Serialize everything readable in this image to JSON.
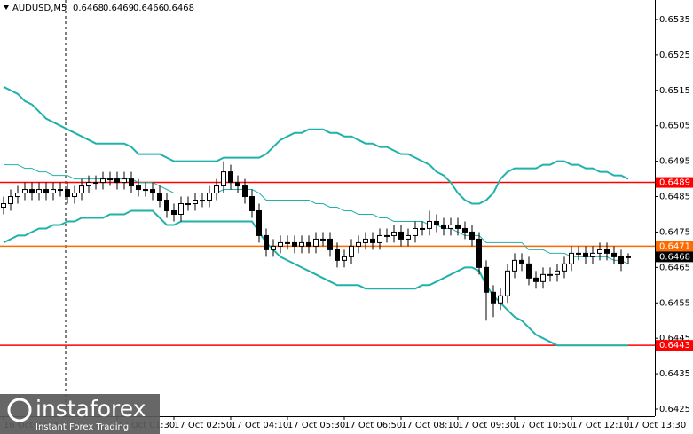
{
  "chart_data": {
    "type": "candlestick",
    "symbol": "AUDUSD,M5",
    "categories": [
      "16 Oct 2024",
      null,
      null,
      null,
      null,
      null,
      null,
      null,
      null,
      null,
      null,
      null,
      null,
      null,
      null,
      null,
      "17 Oct 01:30",
      null,
      null,
      null,
      null,
      null,
      null,
      null,
      "17 Oct 02:50",
      null,
      null,
      null,
      null,
      null,
      null,
      null,
      "17 Oct 04:10",
      null,
      null,
      null,
      null,
      null,
      null,
      null,
      "17 Oct 05:30",
      null,
      null,
      null,
      null,
      null,
      null,
      null,
      "17 Oct 06:50",
      null,
      null,
      null,
      null,
      null,
      null,
      null,
      "17 Oct 08:10",
      null,
      null,
      null,
      null,
      null,
      null,
      null,
      "17 Oct 09:30",
      null,
      null,
      null,
      null,
      null,
      null,
      null,
      "17 Oct 10:50",
      null,
      null,
      null,
      null,
      null,
      null,
      null,
      "17 Oct 12:10",
      null,
      null,
      null,
      null,
      null,
      null,
      null,
      "17 Oct 13:30"
    ],
    "open": [
      0.6482,
      0.6483,
      0.6485,
      0.6486,
      0.6487,
      0.6486,
      0.6487,
      0.6486,
      0.6487,
      0.6487,
      0.6485,
      0.6486,
      0.6488,
      0.6489,
      0.6489,
      0.649,
      0.649,
      0.6489,
      0.649,
      0.6488,
      0.6487,
      0.6487,
      0.6486,
      0.6484,
      0.6481,
      0.648,
      0.6483,
      0.6483,
      0.6484,
      0.6484,
      0.6486,
      0.6488,
      0.6492,
      0.6489,
      0.6488,
      0.6485,
      0.6481,
      0.6474,
      0.647,
      0.6471,
      0.6472,
      0.6472,
      0.6471,
      0.6472,
      0.6471,
      0.6473,
      0.6473,
      0.647,
      0.6467,
      0.6468,
      0.6471,
      0.6472,
      0.6473,
      0.6472,
      0.6474,
      0.6474,
      0.6475,
      0.6473,
      0.6474,
      0.6476,
      0.6476,
      0.6478,
      0.6477,
      0.6476,
      0.6477,
      0.6476,
      0.6475,
      0.6473,
      0.6465,
      0.6458,
      0.6455,
      0.6457,
      0.6464,
      0.6467,
      0.6466,
      0.6462,
      0.6461,
      0.6463,
      0.6463,
      0.6464,
      0.6466,
      0.6469,
      0.6469,
      0.6468,
      0.6469,
      0.647,
      0.6469,
      0.6468,
      0.6468
    ],
    "high": [
      0.6485,
      0.6487,
      0.6488,
      0.6489,
      0.6489,
      0.6489,
      0.6489,
      0.6489,
      0.6489,
      0.6489,
      0.6488,
      0.649,
      0.6491,
      0.6491,
      0.6492,
      0.6492,
      0.6492,
      0.6492,
      0.6492,
      0.649,
      0.6489,
      0.6489,
      0.6488,
      0.6486,
      0.6483,
      0.6485,
      0.6485,
      0.6486,
      0.6486,
      0.6488,
      0.649,
      0.6495,
      0.6494,
      0.6491,
      0.649,
      0.6487,
      0.6483,
      0.6476,
      0.6473,
      0.6474,
      0.6474,
      0.6474,
      0.6474,
      0.6474,
      0.6475,
      0.6475,
      0.6475,
      0.6472,
      0.647,
      0.6473,
      0.6474,
      0.6475,
      0.6475,
      0.6476,
      0.6476,
      0.6477,
      0.6477,
      0.6476,
      0.6478,
      0.6478,
      0.6481,
      0.648,
      0.6479,
      0.6479,
      0.6479,
      0.6478,
      0.6477,
      0.6475,
      0.6467,
      0.646,
      0.6459,
      0.6466,
      0.6469,
      0.6469,
      0.6468,
      0.6464,
      0.6465,
      0.6465,
      0.6466,
      0.6468,
      0.6471,
      0.6471,
      0.6471,
      0.6471,
      0.6472,
      0.6472,
      0.6471,
      0.647,
      0.6469
    ],
    "low": [
      0.648,
      0.6481,
      0.6483,
      0.6484,
      0.6484,
      0.6484,
      0.6484,
      0.6484,
      0.6485,
      0.6483,
      0.6483,
      0.6484,
      0.6486,
      0.6487,
      0.6487,
      0.6488,
      0.6487,
      0.6487,
      0.6486,
      0.6485,
      0.6485,
      0.6484,
      0.6482,
      0.6479,
      0.6478,
      0.6478,
      0.6481,
      0.6481,
      0.6482,
      0.6482,
      0.6484,
      0.6486,
      0.6487,
      0.6486,
      0.6483,
      0.6479,
      0.6472,
      0.6468,
      0.6468,
      0.6469,
      0.647,
      0.6469,
      0.6469,
      0.6469,
      0.6469,
      0.6471,
      0.6468,
      0.6465,
      0.6465,
      0.6466,
      0.6469,
      0.647,
      0.647,
      0.647,
      0.6472,
      0.6472,
      0.6471,
      0.6471,
      0.6472,
      0.6474,
      0.6474,
      0.6475,
      0.6474,
      0.6474,
      0.6474,
      0.6473,
      0.6471,
      0.6463,
      0.645,
      0.6451,
      0.6453,
      0.6455,
      0.6462,
      0.6464,
      0.646,
      0.6459,
      0.6459,
      0.6461,
      0.6461,
      0.6462,
      0.6464,
      0.6467,
      0.6466,
      0.6466,
      0.6467,
      0.6467,
      0.6466,
      0.6464,
      0.6466
    ],
    "close": [
      0.6483,
      0.6485,
      0.6486,
      0.6487,
      0.6486,
      0.6487,
      0.6486,
      0.6487,
      0.6487,
      0.6485,
      0.6486,
      0.6488,
      0.6489,
      0.6489,
      0.649,
      0.649,
      0.6489,
      0.649,
      0.6488,
      0.6487,
      0.6487,
      0.6486,
      0.6484,
      0.6481,
      0.648,
      0.6483,
      0.6483,
      0.6484,
      0.6484,
      0.6486,
      0.6488,
      0.6492,
      0.6489,
      0.6488,
      0.6485,
      0.6481,
      0.6474,
      0.647,
      0.6471,
      0.6472,
      0.6472,
      0.6471,
      0.6472,
      0.6471,
      0.6473,
      0.6473,
      0.647,
      0.6467,
      0.6468,
      0.6471,
      0.6472,
      0.6473,
      0.6472,
      0.6474,
      0.6474,
      0.6475,
      0.6473,
      0.6474,
      0.6476,
      0.6476,
      0.6478,
      0.6477,
      0.6476,
      0.6477,
      0.6476,
      0.6475,
      0.6473,
      0.6465,
      0.6458,
      0.6455,
      0.6457,
      0.6464,
      0.6467,
      0.6466,
      0.6462,
      0.6461,
      0.6463,
      0.6463,
      0.6464,
      0.6466,
      0.6469,
      0.6469,
      0.6468,
      0.6469,
      0.647,
      0.6469,
      0.6468,
      0.6466,
      0.6468
    ],
    "candle_color": "#000000",
    "band_color": "#20b2aa",
    "upper_band": [
      0.6516,
      0.6515,
      0.6514,
      0.6512,
      0.6511,
      0.6509,
      0.6507,
      0.6506,
      0.6505,
      0.6504,
      0.6503,
      0.6502,
      0.6501,
      0.65,
      0.65,
      0.65,
      0.65,
      0.65,
      0.6499,
      0.6497,
      0.6497,
      0.6497,
      0.6497,
      0.6496,
      0.6495,
      0.6495,
      0.6495,
      0.6495,
      0.6495,
      0.6495,
      0.6495,
      0.6496,
      0.6496,
      0.6496,
      0.6496,
      0.6496,
      0.6496,
      0.6497,
      0.6499,
      0.6501,
      0.6502,
      0.6503,
      0.6503,
      0.6504,
      0.6504,
      0.6504,
      0.6503,
      0.6503,
      0.6502,
      0.6502,
      0.6501,
      0.65,
      0.65,
      0.6499,
      0.6499,
      0.6498,
      0.6497,
      0.6497,
      0.6496,
      0.6495,
      0.6494,
      0.6492,
      0.6491,
      0.6489,
      0.6486,
      0.6484,
      0.6483,
      0.6483,
      0.6484,
      0.6486,
      0.649,
      0.6492,
      0.6493,
      0.6493,
      0.6493,
      0.6493,
      0.6494,
      0.6494,
      0.6495,
      0.6495,
      0.6494,
      0.6494,
      0.6493,
      0.6493,
      0.6492,
      0.6492,
      0.6491,
      0.6491,
      0.649
    ],
    "middle_band": [
      0.6494,
      0.6494,
      0.6494,
      0.6493,
      0.6493,
      0.6492,
      0.6492,
      0.6491,
      0.6491,
      0.6491,
      0.649,
      0.649,
      0.649,
      0.649,
      0.649,
      0.649,
      0.649,
      0.649,
      0.649,
      0.6489,
      0.6489,
      0.6489,
      0.6488,
      0.6487,
      0.6486,
      0.6486,
      0.6486,
      0.6486,
      0.6486,
      0.6486,
      0.6486,
      0.6487,
      0.6487,
      0.6487,
      0.6487,
      0.6487,
      0.6486,
      0.6484,
      0.6484,
      0.6484,
      0.6484,
      0.6484,
      0.6484,
      0.6484,
      0.6483,
      0.6483,
      0.6482,
      0.6482,
      0.6481,
      0.6481,
      0.648,
      0.648,
      0.648,
      0.6479,
      0.6479,
      0.6478,
      0.6478,
      0.6478,
      0.6478,
      0.6478,
      0.6477,
      0.6477,
      0.6476,
      0.6476,
      0.6475,
      0.6474,
      0.6474,
      0.6474,
      0.6472,
      0.6472,
      0.6472,
      0.6472,
      0.6472,
      0.6472,
      0.647,
      0.647,
      0.647,
      0.6469,
      0.6469,
      0.6469,
      0.6468,
      0.6468,
      0.6468,
      0.6468,
      0.6468,
      0.6468,
      0.6467,
      0.6467,
      0.6466
    ],
    "lower_band": [
      0.6472,
      0.6473,
      0.6474,
      0.6474,
      0.6475,
      0.6476,
      0.6476,
      0.6477,
      0.6477,
      0.6478,
      0.6478,
      0.6479,
      0.6479,
      0.6479,
      0.6479,
      0.648,
      0.648,
      0.648,
      0.6481,
      0.6481,
      0.6481,
      0.6481,
      0.6479,
      0.6477,
      0.6477,
      0.6478,
      0.6478,
      0.6478,
      0.6478,
      0.6478,
      0.6478,
      0.6478,
      0.6478,
      0.6478,
      0.6478,
      0.6478,
      0.6475,
      0.6472,
      0.647,
      0.6468,
      0.6467,
      0.6466,
      0.6465,
      0.6464,
      0.6463,
      0.6462,
      0.6461,
      0.646,
      0.646,
      0.646,
      0.646,
      0.6459,
      0.6459,
      0.6459,
      0.6459,
      0.6459,
      0.6459,
      0.6459,
      0.6459,
      0.646,
      0.646,
      0.6461,
      0.6462,
      0.6463,
      0.6464,
      0.6465,
      0.6465,
      0.6464,
      0.646,
      0.6457,
      0.6455,
      0.6453,
      0.6451,
      0.645,
      0.6448,
      0.6446,
      0.6445,
      0.6444,
      0.6443,
      0.6443,
      0.6443,
      0.6443,
      0.6443,
      0.6443,
      0.6443,
      0.6443,
      0.6443,
      0.6443,
      0.6443
    ],
    "levels": [
      {
        "value": 0.6489,
        "color": "#ff0000"
      },
      {
        "value": 0.6471,
        "color": "#ff6a00"
      },
      {
        "value": 0.6443,
        "color": "#ff0000"
      }
    ],
    "price_label_color": "#000000",
    "ylim": [
      0.6423,
      0.65405
    ],
    "yticks": [
      0.6425,
      0.6435,
      0.6445,
      0.6455,
      0.6465,
      0.6475,
      0.6485,
      0.6495,
      0.6505,
      0.6515,
      0.6525,
      0.6535
    ],
    "grid": false
  },
  "logo": {
    "name": "instaforex",
    "tagline": "Instant Forex Trading"
  }
}
